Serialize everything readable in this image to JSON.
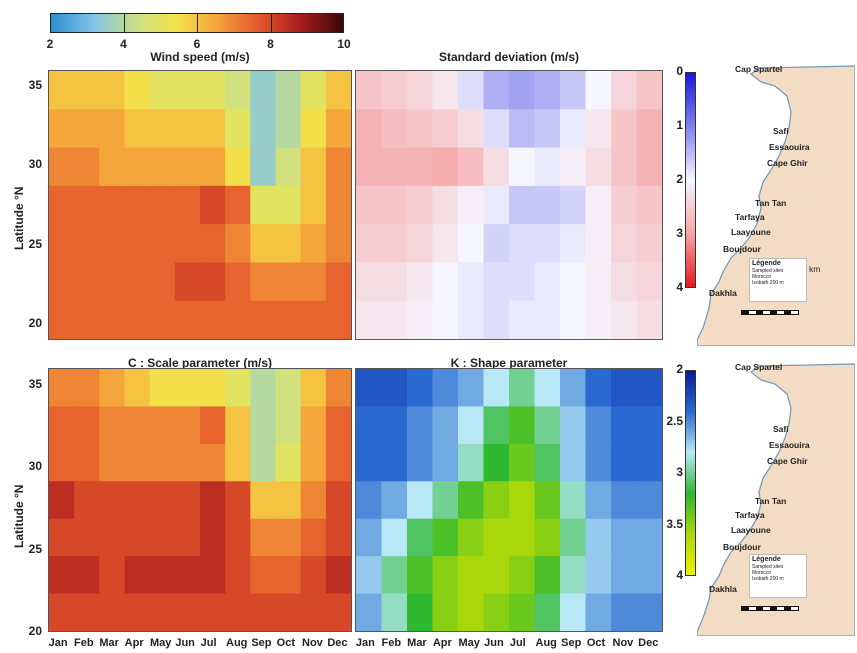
{
  "colorbar_top": {
    "ticks": [
      "2",
      "4",
      "6",
      "8",
      "10"
    ],
    "label": "Wind speed (m/s)",
    "colors": [
      "#2b8fd0",
      "#7fc3e6",
      "#c8e08a",
      "#f3e44a",
      "#f5a23a",
      "#e4562c",
      "#a81c1c",
      "#3a0808"
    ]
  },
  "panels": {
    "std": {
      "title": "Standard deviation (m/s)"
    },
    "scale": {
      "title": "C : Scale parameter (m/s)"
    },
    "shape": {
      "title": "K : Shape parameter"
    }
  },
  "axis": {
    "ylabel": "Latitude °N",
    "yticks": [
      "35",
      "30",
      "25",
      "20"
    ],
    "months": [
      "Jan",
      "Feb",
      "Mar",
      "Apr",
      "May",
      "Jun",
      "Jul",
      "Aug",
      "Sep",
      "Oct",
      "Nov",
      "Dec"
    ]
  },
  "colorbar_std": {
    "ticks": [
      "0",
      "1",
      "2",
      "3",
      "4"
    ]
  },
  "colorbar_shape": {
    "ticks": [
      "2",
      "2.5",
      "3",
      "3.5",
      "4"
    ]
  },
  "map": {
    "cities": [
      "Cap Spartel",
      "Safi",
      "Essaouira",
      "Cape Ghir",
      "Tan Tan",
      "Tarfaya",
      "Laayoune",
      "Boujdour",
      "Dakhla"
    ],
    "legend_title": "Légende",
    "legend_items": [
      "Sampled sites",
      "Morocco",
      "Isobath 200 m"
    ],
    "km_label": "km"
  },
  "chart_data": [
    {
      "type": "heatmap",
      "title": "",
      "xlabel": "",
      "ylabel": "Latitude °N",
      "x_categories": [
        "Jan",
        "Feb",
        "Mar",
        "Apr",
        "May",
        "Jun",
        "Jul",
        "Aug",
        "Sep",
        "Oct",
        "Nov",
        "Dec"
      ],
      "ylim": [
        19,
        36
      ],
      "colorbar": {
        "label": "Wind speed (m/s)",
        "range": [
          2,
          10
        ]
      },
      "y_rows": [
        35,
        32.5,
        30,
        27.5,
        25,
        22.5,
        20
      ],
      "values": [
        [
          6,
          6,
          6,
          5.5,
          5,
          5,
          5,
          4.5,
          3.5,
          4,
          5,
          6
        ],
        [
          6.5,
          6.5,
          6.5,
          6,
          6,
          6,
          6,
          5,
          3.5,
          4,
          5.5,
          6.5
        ],
        [
          7,
          7,
          6.5,
          6.5,
          6.5,
          6.5,
          6.5,
          5.5,
          3.5,
          4.5,
          6,
          7
        ],
        [
          7.5,
          7.5,
          7.5,
          7.5,
          7.5,
          7.5,
          8,
          7.5,
          5,
          5,
          6,
          7
        ],
        [
          7.5,
          7.5,
          7.5,
          7.5,
          7.5,
          7.5,
          7.5,
          7,
          6,
          6,
          6.5,
          7
        ],
        [
          7.5,
          7.5,
          7.5,
          7.5,
          7.5,
          8,
          8,
          7.5,
          7,
          7,
          7,
          7.5
        ],
        [
          7.5,
          7.5,
          7.5,
          7.5,
          7.5,
          7.5,
          7.5,
          7.5,
          7.5,
          7.5,
          7.5,
          7.5
        ]
      ]
    },
    {
      "type": "heatmap",
      "title": "Standard deviation (m/s)",
      "xlabel": "",
      "ylabel": "",
      "x_categories": [
        "Jan",
        "Feb",
        "Mar",
        "Apr",
        "May",
        "Jun",
        "Jul",
        "Aug",
        "Sep",
        "Oct",
        "Nov",
        "Dec"
      ],
      "ylim": [
        19,
        36
      ],
      "colorbar": {
        "range": [
          0,
          4
        ]
      },
      "y_rows": [
        35,
        32.5,
        30,
        27.5,
        25,
        22.5,
        20
      ],
      "values": [
        [
          2.6,
          2.5,
          2.4,
          2.2,
          1.8,
          1.4,
          1.3,
          1.4,
          1.6,
          2.0,
          2.4,
          2.6
        ],
        [
          2.8,
          2.7,
          2.6,
          2.5,
          2.3,
          1.8,
          1.5,
          1.6,
          1.9,
          2.2,
          2.6,
          2.8
        ],
        [
          2.8,
          2.8,
          2.8,
          2.9,
          2.7,
          2.3,
          2.0,
          1.9,
          2.1,
          2.3,
          2.6,
          2.8
        ],
        [
          2.6,
          2.6,
          2.5,
          2.3,
          2.1,
          1.9,
          1.6,
          1.6,
          1.7,
          2.1,
          2.5,
          2.6
        ],
        [
          2.5,
          2.5,
          2.4,
          2.2,
          2.0,
          1.7,
          1.8,
          1.8,
          1.9,
          2.1,
          2.4,
          2.5
        ],
        [
          2.3,
          2.3,
          2.2,
          2.0,
          1.9,
          1.8,
          1.8,
          1.9,
          2.0,
          2.1,
          2.3,
          2.4
        ],
        [
          2.2,
          2.2,
          2.1,
          2.0,
          1.9,
          1.8,
          1.9,
          1.9,
          2.0,
          2.1,
          2.2,
          2.3
        ]
      ]
    },
    {
      "type": "heatmap",
      "title": "C : Scale parameter (m/s)",
      "xlabel": "",
      "ylabel": "Latitude °N",
      "x_categories": [
        "Jan",
        "Feb",
        "Mar",
        "Apr",
        "May",
        "Jun",
        "Jul",
        "Aug",
        "Sep",
        "Oct",
        "Nov",
        "Dec"
      ],
      "ylim": [
        20,
        36
      ],
      "colorbar": {
        "label": "Wind speed (m/s)",
        "range": [
          2,
          10
        ]
      },
      "y_rows": [
        35,
        32.5,
        30,
        27.5,
        25,
        22.5,
        20
      ],
      "values": [
        [
          7,
          7,
          6.5,
          6,
          5.5,
          5.5,
          5.5,
          5,
          4,
          4.5,
          6,
          7
        ],
        [
          7.5,
          7.5,
          7,
          7,
          7,
          7,
          7.5,
          6,
          4,
          4.5,
          6.5,
          7.5
        ],
        [
          7.5,
          7.5,
          7,
          7,
          7,
          7,
          7,
          6,
          4,
          5,
          6.5,
          7.5
        ],
        [
          8.5,
          8,
          8,
          8,
          8,
          8,
          8.5,
          8,
          6,
          6,
          7,
          8
        ],
        [
          8,
          8,
          8,
          8,
          8,
          8,
          8.5,
          8,
          7,
          7,
          7.5,
          8
        ],
        [
          8.5,
          8.5,
          8,
          8.5,
          8.5,
          8.5,
          8.5,
          8,
          7.5,
          7.5,
          8,
          8.5
        ],
        [
          8,
          8,
          8,
          8,
          8,
          8,
          8,
          8,
          8,
          8,
          8,
          8
        ]
      ]
    },
    {
      "type": "heatmap",
      "title": "K : Shape parameter",
      "xlabel": "",
      "ylabel": "",
      "x_categories": [
        "Jan",
        "Feb",
        "Mar",
        "Apr",
        "May",
        "Jun",
        "Jul",
        "Aug",
        "Sep",
        "Oct",
        "Nov",
        "Dec"
      ],
      "ylim": [
        20,
        36
      ],
      "colorbar": {
        "range": [
          2,
          4
        ]
      },
      "y_rows": [
        35,
        32.5,
        30,
        27.5,
        25,
        22.5,
        20
      ],
      "values": [
        [
          2.3,
          2.3,
          2.4,
          2.5,
          2.6,
          2.8,
          3.0,
          2.8,
          2.6,
          2.4,
          2.3,
          2.3
        ],
        [
          2.4,
          2.4,
          2.5,
          2.6,
          2.8,
          3.1,
          3.3,
          3.0,
          2.7,
          2.5,
          2.4,
          2.4
        ],
        [
          2.4,
          2.4,
          2.5,
          2.6,
          2.9,
          3.2,
          3.4,
          3.1,
          2.7,
          2.5,
          2.4,
          2.4
        ],
        [
          2.5,
          2.6,
          2.8,
          3.0,
          3.3,
          3.5,
          3.6,
          3.4,
          2.9,
          2.6,
          2.5,
          2.5
        ],
        [
          2.6,
          2.8,
          3.1,
          3.3,
          3.5,
          3.6,
          3.6,
          3.5,
          3.0,
          2.7,
          2.6,
          2.6
        ],
        [
          2.7,
          3.0,
          3.3,
          3.5,
          3.6,
          3.6,
          3.5,
          3.3,
          2.9,
          2.7,
          2.6,
          2.6
        ],
        [
          2.6,
          2.9,
          3.2,
          3.5,
          3.6,
          3.5,
          3.4,
          3.1,
          2.8,
          2.6,
          2.5,
          2.5
        ]
      ]
    }
  ]
}
